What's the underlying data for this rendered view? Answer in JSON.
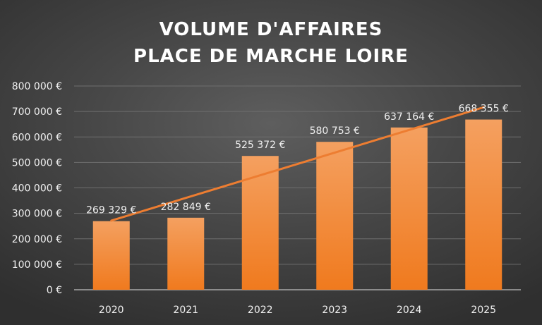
{
  "chart_data": {
    "type": "bar",
    "title": [
      "VOLUME D'AFFAIRES",
      "PLACE DE MARCHE LOIRE"
    ],
    "categories": [
      "2020",
      "2021",
      "2022",
      "2023",
      "2024",
      "2025"
    ],
    "values": [
      269329,
      282849,
      525372,
      580753,
      637164,
      668355
    ],
    "data_labels": [
      "269 329 €",
      "282 849 €",
      "525 372 €",
      "580 753 €",
      "637 164 €",
      "668 355 €"
    ],
    "ylim": [
      0,
      800000
    ],
    "yticks": [
      0,
      100000,
      200000,
      300000,
      400000,
      500000,
      600000,
      700000,
      800000
    ],
    "ytick_labels": [
      "0 €",
      "100 000 €",
      "200 000 €",
      "300 000 €",
      "400 000 €",
      "500 000 €",
      "600 000 €",
      "700 000 €",
      "800 000 €"
    ],
    "grid": true,
    "legend": false,
    "trendline": {
      "type": "linear",
      "color": "#ed7d31"
    },
    "colors": {
      "bar_top": "#f4a060",
      "bar_bottom": "#f07a1e",
      "trend": "#ed7d31",
      "text": "#f0f0f0",
      "title": "#ffffff"
    }
  }
}
